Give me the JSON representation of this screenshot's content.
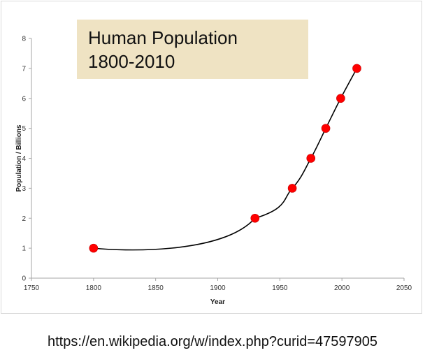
{
  "chart_data": {
    "type": "scatter",
    "title": "Human Population",
    "subtitle": "1800-2010",
    "xlabel": "Year",
    "ylabel": "Population / Billions",
    "xlim": [
      1750,
      2050
    ],
    "ylim": [
      0,
      8
    ],
    "x_ticks": [
      1750,
      1800,
      1850,
      1900,
      1950,
      2000,
      2050
    ],
    "y_ticks": [
      0,
      1,
      2,
      3,
      4,
      5,
      6,
      7,
      8
    ],
    "grid": false,
    "legend": "none",
    "trendline": "smooth curve",
    "series": [
      {
        "x": [
          1800,
          1930,
          1960,
          1975,
          1987,
          1999,
          2012
        ],
        "y": [
          1,
          2,
          3,
          4,
          5,
          6,
          7
        ]
      }
    ],
    "marker_color": "#ff0000",
    "line_color": "#000000"
  },
  "caption": "https://en.wikipedia.org/w/index.php?curid=47597905"
}
